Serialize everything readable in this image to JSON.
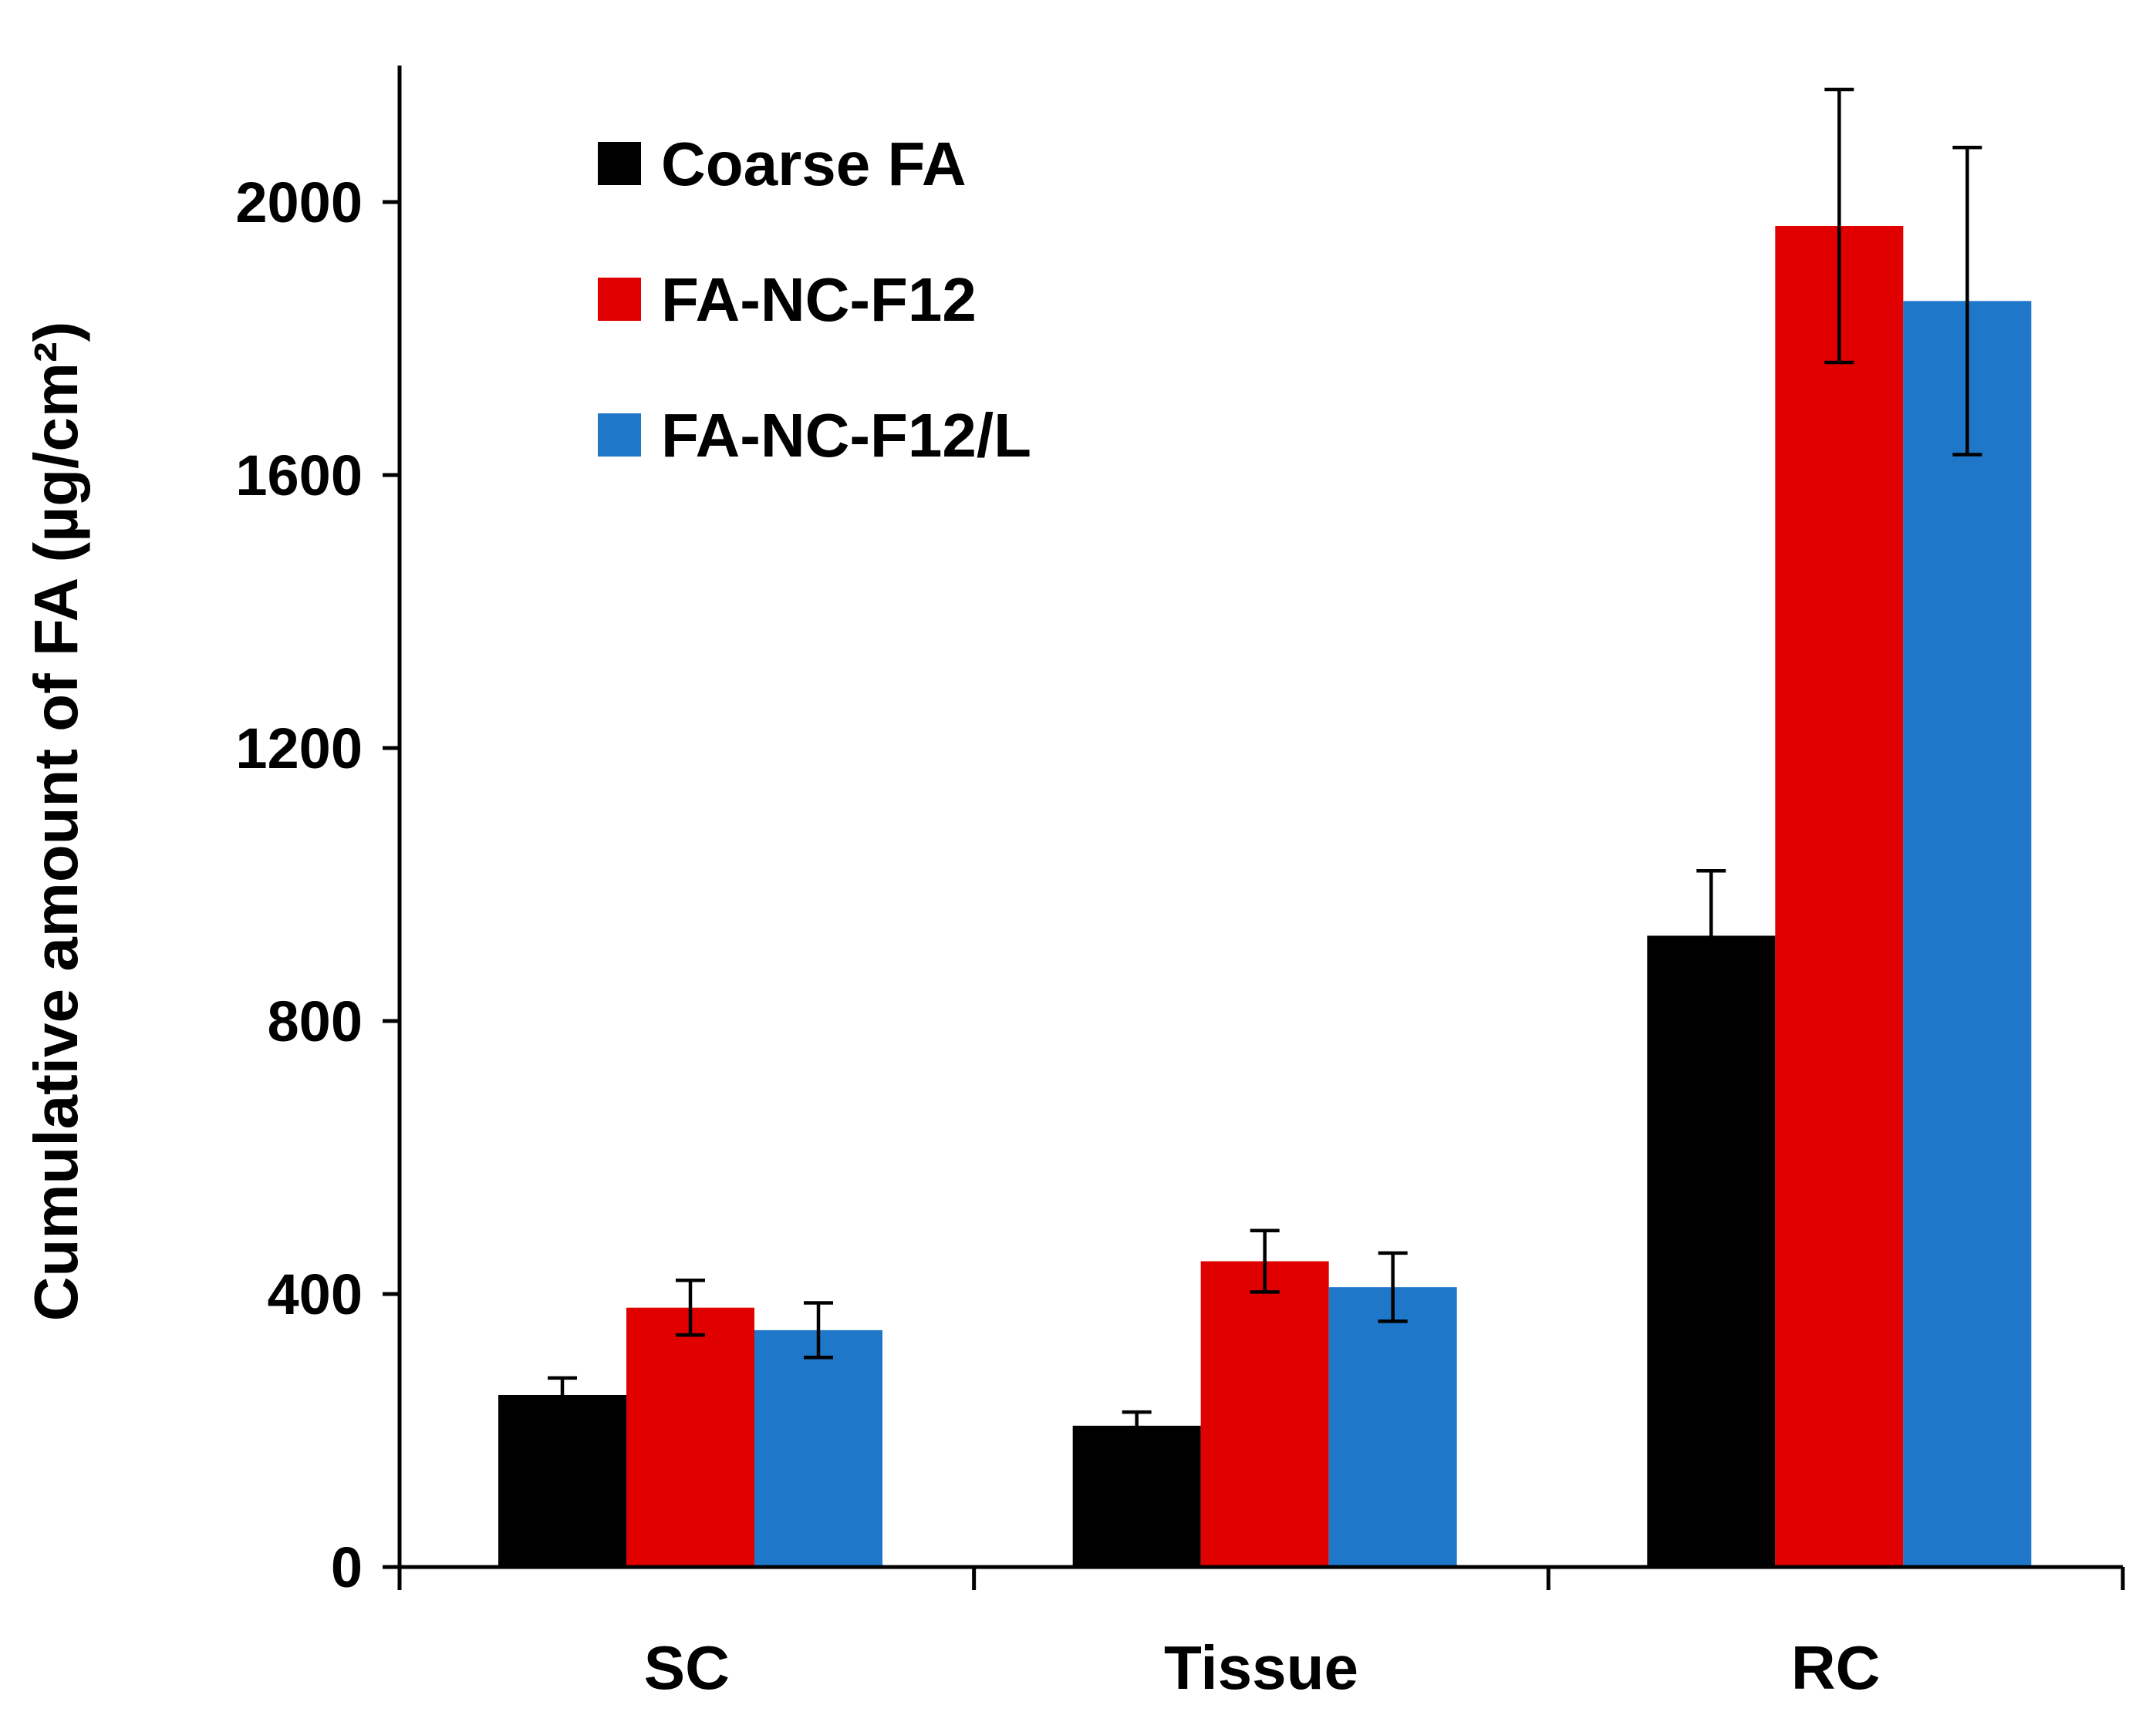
{
  "chart_data": {
    "type": "bar",
    "title": "",
    "xlabel": "",
    "ylabel": "Cumulative amount of FA (µg/cm²)",
    "ylim": [
      0,
      2200
    ],
    "yticks": [
      0,
      400,
      800,
      1200,
      1600,
      2000
    ],
    "grid": false,
    "legend_position": "top-left",
    "categories": [
      "SC",
      "Tissue",
      "RC"
    ],
    "series": [
      {
        "name": "Coarse FA",
        "color": "#000000",
        "values": [
          252,
          207,
          925
        ],
        "errors": [
          25,
          20,
          95
        ]
      },
      {
        "name": "FA-NC-F12",
        "color": "#e00000",
        "values": [
          380,
          448,
          1965
        ],
        "errors": [
          40,
          45,
          200
        ]
      },
      {
        "name": "FA-NC-F12/L",
        "color": "#1f77c9",
        "values": [
          347,
          410,
          1855
        ],
        "errors": [
          40,
          50,
          225
        ]
      }
    ]
  }
}
